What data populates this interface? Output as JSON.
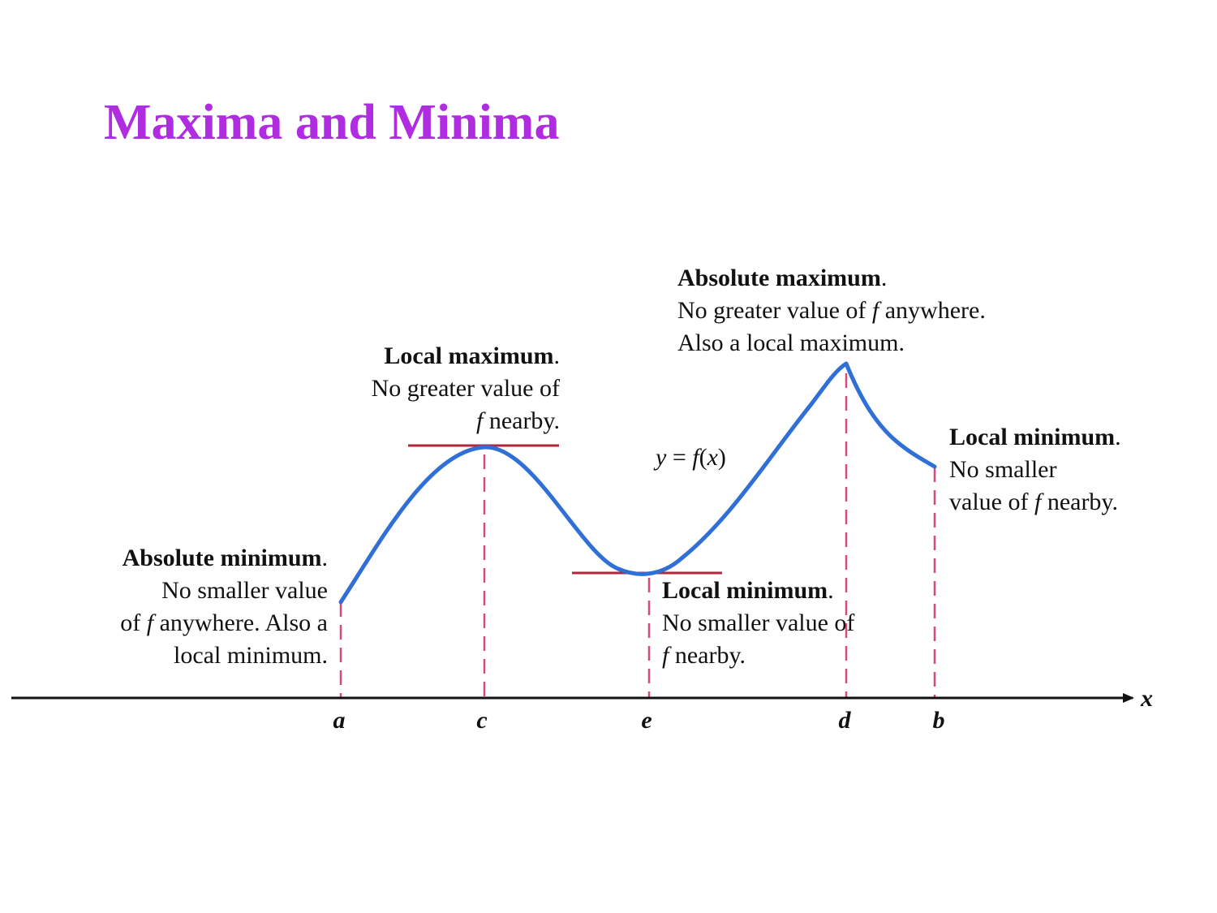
{
  "title": "Maxima and Minima",
  "colors": {
    "title": "#b02ce0",
    "curve": "#2f6fd6",
    "guides": "#d9487a",
    "tangents": "#b3263a",
    "axis": "#111111"
  },
  "axis": {
    "x_label": "x",
    "tick_labels": [
      "a",
      "c",
      "e",
      "d",
      "b"
    ]
  },
  "curve_label": {
    "y": "y",
    "eq": " = ",
    "f": "f",
    "open": "(",
    "x": "x",
    "close": ")"
  },
  "annotations": {
    "abs_max": {
      "heading": "Absolute maximum",
      "dot": ".",
      "line1": "No greater value of ",
      "f": "f",
      "line1_end": " anywhere.",
      "line2": "Also a local maximum."
    },
    "local_max": {
      "heading": "Local maximum",
      "dot": ".",
      "line1": "No greater value of",
      "f": "f",
      "line2_end": " nearby."
    },
    "local_min_right": {
      "heading": "Local minimum",
      "dot": ".",
      "line1": "No smaller",
      "line2": "value of ",
      "f": "f",
      "line2_end": " nearby."
    },
    "abs_min": {
      "heading": "Absolute minimum",
      "dot": ".",
      "line1": "No smaller value",
      "line2": "of ",
      "f": "f",
      "line2_end": " anywhere. Also a",
      "line3": "local minimum."
    },
    "local_min_mid": {
      "heading": "Local minimum",
      "dot": ".",
      "line1": "No smaller value of",
      "f": "f",
      "line2_end": " nearby."
    }
  }
}
